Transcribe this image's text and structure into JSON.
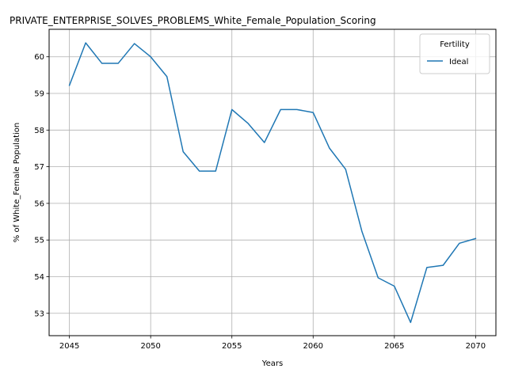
{
  "chart_data": {
    "type": "line",
    "title": "PRIVATE_ENTERPRISE_SOLVES_PROBLEMS_White_Female_Population_Scoring",
    "xlabel": "Years",
    "ylabel": "% of White_Female Population",
    "xlim": [
      2043.75,
      2071.25
    ],
    "ylim": [
      52.39,
      60.75
    ],
    "xticks": [
      2045,
      2050,
      2055,
      2060,
      2065,
      2070
    ],
    "yticks": [
      53,
      54,
      55,
      56,
      57,
      58,
      59,
      60
    ],
    "grid": true,
    "legend": {
      "title": "Fertility",
      "placement": "top-right"
    },
    "colors": {
      "series": "#1f77b4",
      "grid": "#b0b0b0"
    },
    "x": [
      2045,
      2046,
      2047,
      2048,
      2049,
      2050,
      2051,
      2052,
      2053,
      2054,
      2055,
      2056,
      2057,
      2058,
      2059,
      2060,
      2061,
      2062,
      2063,
      2064,
      2065,
      2066,
      2067,
      2068,
      2069,
      2070
    ],
    "series": [
      {
        "name": "Ideal",
        "values": [
          59.22,
          60.38,
          59.82,
          59.82,
          60.36,
          60.0,
          59.46,
          57.41,
          56.88,
          56.88,
          58.56,
          58.18,
          57.66,
          58.56,
          58.56,
          58.48,
          57.51,
          56.93,
          55.24,
          53.97,
          53.74,
          52.75,
          54.25,
          54.31,
          54.91,
          55.04
        ]
      }
    ]
  }
}
